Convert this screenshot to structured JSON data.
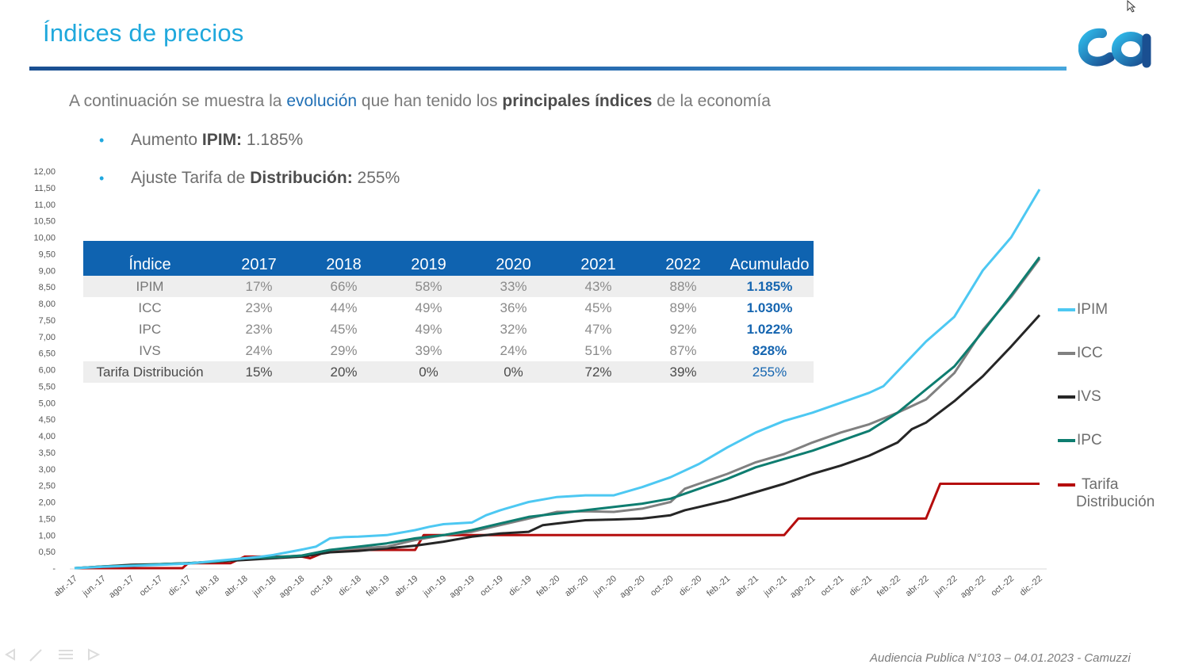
{
  "slide": {
    "title": "Índices de precios",
    "intro": {
      "part1": "A continuación se muestra la ",
      "part2": "evolución",
      "part3": " que han tenido los ",
      "part4": "principales índices",
      "part5": " de la economía"
    },
    "bullets": [
      {
        "prefix": "Aumento ",
        "bold": "IPIM:",
        "value": " 1.185%"
      },
      {
        "prefix": "Ajuste Tarifa de ",
        "bold": "Distribución:",
        "value": " 255%"
      }
    ],
    "footer": "Audiencia Publica N°103 – 04.01.2023 - Camuzzi"
  },
  "table": {
    "headers": [
      "Índice",
      "2017",
      "2018",
      "2019",
      "2020",
      "2021",
      "2022",
      "Acumulado"
    ],
    "rows": [
      [
        "IPIM",
        "17%",
        "66%",
        "58%",
        "33%",
        "43%",
        "88%",
        "1.185%"
      ],
      [
        "ICC",
        "23%",
        "44%",
        "49%",
        "36%",
        "45%",
        "89%",
        "1.030%"
      ],
      [
        "IPC",
        "23%",
        "45%",
        "49%",
        "32%",
        "47%",
        "92%",
        "1.022%"
      ],
      [
        "IVS",
        "24%",
        "29%",
        "39%",
        "24%",
        "51%",
        "87%",
        "828%"
      ],
      [
        "Tarifa Distribución",
        "15%",
        "20%",
        "0%",
        "0%",
        "72%",
        "39%",
        "255%"
      ]
    ]
  },
  "colors": {
    "IPIM": "#4dc8f2",
    "ICC": "#808080",
    "IVS": "#262626",
    "IPC": "#0e7d70",
    "Tarifa": "#b50d0d",
    "title": "#1fa8dc",
    "header": "#0f63b0"
  },
  "chart_data": {
    "type": "line",
    "y_ticks": [
      "12,00",
      "11,50",
      "11,00",
      "10,50",
      "10,00",
      "9,50",
      "9,00",
      "8,50",
      "8,00",
      "7,50",
      "7,00",
      "6,50",
      "6,00",
      "5,50",
      "5,00",
      "4,50",
      "4,00",
      "3,50",
      "3,00",
      "2,50",
      "2,00",
      "1,50",
      "1,00",
      "0,50",
      "-"
    ],
    "ylim": [
      0,
      12
    ],
    "x_labels": [
      "abr.-17",
      "jun.-17",
      "ago.-17",
      "oct.-17",
      "dic.-17",
      "feb.-18",
      "abr.-18",
      "jun.-18",
      "ago.-18",
      "oct.-18",
      "dic.-18",
      "feb.-19",
      "abr.-19",
      "jun.-19",
      "ago.-19",
      "oct.-19",
      "dic.-19",
      "feb.-20",
      "abr.-20",
      "jun.-20",
      "ago.-20",
      "oct.-20",
      "dic.-20",
      "feb.-21",
      "abr.-21",
      "jun.-21",
      "ago.-21",
      "oct.-21",
      "dic.-21",
      "feb.-22",
      "abr.-22",
      "jun.-22",
      "ago.-22",
      "oct.-22",
      "dic.-22"
    ],
    "legend": [
      {
        "key": "IPIM",
        "label": "IPIM"
      },
      {
        "key": "ICC",
        "label": "ICC"
      },
      {
        "key": "IVS",
        "label": "IVS"
      },
      {
        "key": "IPC",
        "label": "IPC"
      },
      {
        "key": "Tarifa",
        "label": "Tarifa",
        "label2": "Distribución"
      }
    ],
    "series": [
      {
        "key": "IPIM",
        "name": "IPIM",
        "points": [
          [
            0,
            0
          ],
          [
            1,
            0.04
          ],
          [
            2,
            0.07
          ],
          [
            3,
            0.1
          ],
          [
            4,
            0.14
          ],
          [
            5,
            0.22
          ],
          [
            6,
            0.3
          ],
          [
            6.5,
            0.34
          ],
          [
            7,
            0.4
          ],
          [
            7.5,
            0.48
          ],
          [
            8,
            0.56
          ],
          [
            8.5,
            0.65
          ],
          [
            9,
            0.9
          ],
          [
            9.5,
            0.94
          ],
          [
            10,
            0.95
          ],
          [
            11,
            1.0
          ],
          [
            12,
            1.15
          ],
          [
            12.5,
            1.25
          ],
          [
            13,
            1.33
          ],
          [
            14,
            1.38
          ],
          [
            14.5,
            1.6
          ],
          [
            15,
            1.75
          ],
          [
            16,
            2.0
          ],
          [
            17,
            2.15
          ],
          [
            18,
            2.2
          ],
          [
            19,
            2.2
          ],
          [
            20,
            2.45
          ],
          [
            21,
            2.75
          ],
          [
            22,
            3.15
          ],
          [
            23,
            3.65
          ],
          [
            24,
            4.1
          ],
          [
            25,
            4.45
          ],
          [
            26,
            4.7
          ],
          [
            27,
            5.0
          ],
          [
            28,
            5.3
          ],
          [
            28.5,
            5.5
          ],
          [
            29,
            5.95
          ],
          [
            30,
            6.85
          ],
          [
            31,
            7.6
          ],
          [
            32,
            9.0
          ],
          [
            32.5,
            9.5
          ],
          [
            33,
            10.0
          ],
          [
            34,
            11.45
          ]
        ]
      },
      {
        "key": "ICC",
        "name": "ICC",
        "points": [
          [
            0,
            0
          ],
          [
            1,
            0.05
          ],
          [
            2,
            0.08
          ],
          [
            3,
            0.11
          ],
          [
            4,
            0.14
          ],
          [
            5,
            0.2
          ],
          [
            6,
            0.3
          ],
          [
            7,
            0.33
          ],
          [
            8,
            0.38
          ],
          [
            9,
            0.55
          ],
          [
            10,
            0.6
          ],
          [
            11,
            0.65
          ],
          [
            12,
            0.85
          ],
          [
            13,
            1.0
          ],
          [
            14,
            1.1
          ],
          [
            15,
            1.3
          ],
          [
            16,
            1.5
          ],
          [
            17,
            1.7
          ],
          [
            18,
            1.72
          ],
          [
            19,
            1.7
          ],
          [
            20,
            1.8
          ],
          [
            21,
            2.0
          ],
          [
            21.5,
            2.4
          ],
          [
            22,
            2.55
          ],
          [
            23,
            2.85
          ],
          [
            24,
            3.2
          ],
          [
            25,
            3.45
          ],
          [
            26,
            3.8
          ],
          [
            27,
            4.1
          ],
          [
            28,
            4.35
          ],
          [
            29,
            4.7
          ],
          [
            30,
            5.1
          ],
          [
            31,
            5.9
          ],
          [
            32,
            7.2
          ],
          [
            33,
            8.2
          ],
          [
            34,
            9.35
          ]
        ]
      },
      {
        "key": "IVS",
        "name": "IVS",
        "points": [
          [
            0,
            0
          ],
          [
            1,
            0.05
          ],
          [
            2,
            0.1
          ],
          [
            3,
            0.12
          ],
          [
            4,
            0.15
          ],
          [
            5,
            0.2
          ],
          [
            6,
            0.25
          ],
          [
            7,
            0.3
          ],
          [
            8,
            0.35
          ],
          [
            9,
            0.48
          ],
          [
            10,
            0.52
          ],
          [
            11,
            0.6
          ],
          [
            12,
            0.68
          ],
          [
            13,
            0.8
          ],
          [
            14,
            0.95
          ],
          [
            15,
            1.05
          ],
          [
            16,
            1.1
          ],
          [
            16.5,
            1.3
          ],
          [
            17,
            1.35
          ],
          [
            18,
            1.45
          ],
          [
            19,
            1.47
          ],
          [
            20,
            1.5
          ],
          [
            21,
            1.6
          ],
          [
            21.5,
            1.75
          ],
          [
            22,
            1.85
          ],
          [
            23,
            2.05
          ],
          [
            24,
            2.3
          ],
          [
            25,
            2.55
          ],
          [
            26,
            2.85
          ],
          [
            27,
            3.1
          ],
          [
            28,
            3.4
          ],
          [
            29,
            3.8
          ],
          [
            29.5,
            4.2
          ],
          [
            30,
            4.4
          ],
          [
            31,
            5.05
          ],
          [
            32,
            5.8
          ],
          [
            33,
            6.7
          ],
          [
            34,
            7.65
          ]
        ]
      },
      {
        "key": "IPC",
        "name": "IPC",
        "points": [
          [
            0,
            0
          ],
          [
            1,
            0.05
          ],
          [
            2,
            0.08
          ],
          [
            3,
            0.12
          ],
          [
            4,
            0.15
          ],
          [
            5,
            0.2
          ],
          [
            6,
            0.3
          ],
          [
            7,
            0.33
          ],
          [
            8,
            0.38
          ],
          [
            9,
            0.55
          ],
          [
            10,
            0.65
          ],
          [
            11,
            0.75
          ],
          [
            12,
            0.9
          ],
          [
            13,
            1.0
          ],
          [
            14,
            1.15
          ],
          [
            15,
            1.35
          ],
          [
            16,
            1.55
          ],
          [
            17,
            1.65
          ],
          [
            18,
            1.75
          ],
          [
            19,
            1.85
          ],
          [
            20,
            1.95
          ],
          [
            21,
            2.1
          ],
          [
            22,
            2.4
          ],
          [
            23,
            2.7
          ],
          [
            24,
            3.05
          ],
          [
            25,
            3.3
          ],
          [
            26,
            3.55
          ],
          [
            27,
            3.85
          ],
          [
            28,
            4.15
          ],
          [
            29,
            4.7
          ],
          [
            30,
            5.4
          ],
          [
            31,
            6.1
          ],
          [
            32,
            7.15
          ],
          [
            33,
            8.25
          ],
          [
            34,
            9.4
          ]
        ]
      },
      {
        "key": "Tarifa",
        "name": "Tarifa Distribución",
        "points": [
          [
            0,
            0
          ],
          [
            3.8,
            0
          ],
          [
            4,
            0.15
          ],
          [
            5.5,
            0.15
          ],
          [
            6,
            0.35
          ],
          [
            8,
            0.35
          ],
          [
            8.3,
            0.3
          ],
          [
            9,
            0.55
          ],
          [
            12,
            0.55
          ],
          [
            12.3,
            1.0
          ],
          [
            14,
            1.0
          ],
          [
            25,
            1.0
          ],
          [
            25.5,
            1.5
          ],
          [
            30,
            1.5
          ],
          [
            30.5,
            2.55
          ],
          [
            34,
            2.55
          ]
        ]
      }
    ]
  }
}
